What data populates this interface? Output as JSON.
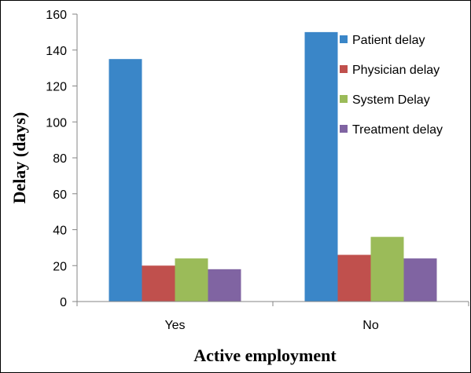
{
  "chart_data": {
    "type": "bar",
    "title": "",
    "xlabel": "Active employment",
    "ylabel": "Delay (days)",
    "categories": [
      "Yes",
      "No"
    ],
    "ylim": [
      0,
      160
    ],
    "yticks": [
      0,
      20,
      40,
      60,
      80,
      100,
      120,
      140,
      160
    ],
    "grid": false,
    "legend_position": "right",
    "series": [
      {
        "name": "Patient delay",
        "color": "#3a86c8",
        "values": [
          135,
          150
        ]
      },
      {
        "name": "Physician delay",
        "color": "#c0504d",
        "values": [
          20,
          26
        ]
      },
      {
        "name": "System Delay",
        "color": "#9bbb59",
        "values": [
          24,
          36
        ]
      },
      {
        "name": "Treatment delay",
        "color": "#8064a2",
        "values": [
          18,
          24
        ]
      }
    ]
  }
}
